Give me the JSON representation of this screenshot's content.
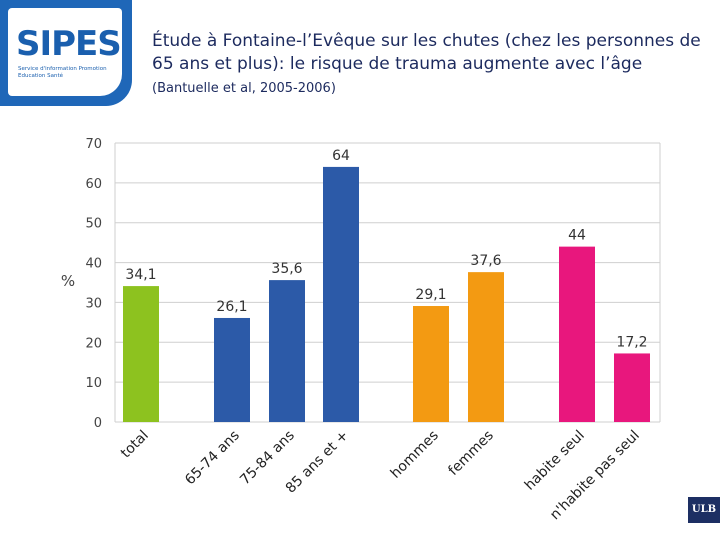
{
  "logo": {
    "wordmark": "SIPES",
    "tagline": "Service d'information Promotion Education Santé",
    "colors": {
      "panel": "#1f67b8",
      "text": "#1a5fae",
      "accent": "#8cc21f"
    }
  },
  "title": {
    "text": "Étude à Fontaine-l’Evêque sur les chutes (chez les personnes de 65 ans et plus):  le risque de trauma augmente avec l’âge",
    "ref": "(Bantuelle et al, 2005-2006)"
  },
  "chart_data": {
    "type": "bar",
    "ylabel": "%",
    "ylim": [
      0,
      70
    ],
    "yticks": [
      0,
      10,
      20,
      30,
      40,
      50,
      60,
      70
    ],
    "grid": true,
    "categories": [
      "total",
      "65-74 ans",
      "75-84 ans",
      "85 ans et +",
      "hommes",
      "femmes",
      "habite seul",
      "n'habite pas seul"
    ],
    "values": [
      34.1,
      26.1,
      35.6,
      64,
      29.1,
      37.6,
      44,
      17.2
    ],
    "labels": [
      "34,1",
      "26,1",
      "35,6",
      "64",
      "29,1",
      "37,6",
      "44",
      "17,2"
    ],
    "colors": [
      "#8dc21f",
      "#2c5aa8",
      "#2c5aa8",
      "#2c5aa8",
      "#f39a12",
      "#f39a12",
      "#e8177d",
      "#e8177d"
    ]
  },
  "footer": {
    "badge": "ULB"
  }
}
